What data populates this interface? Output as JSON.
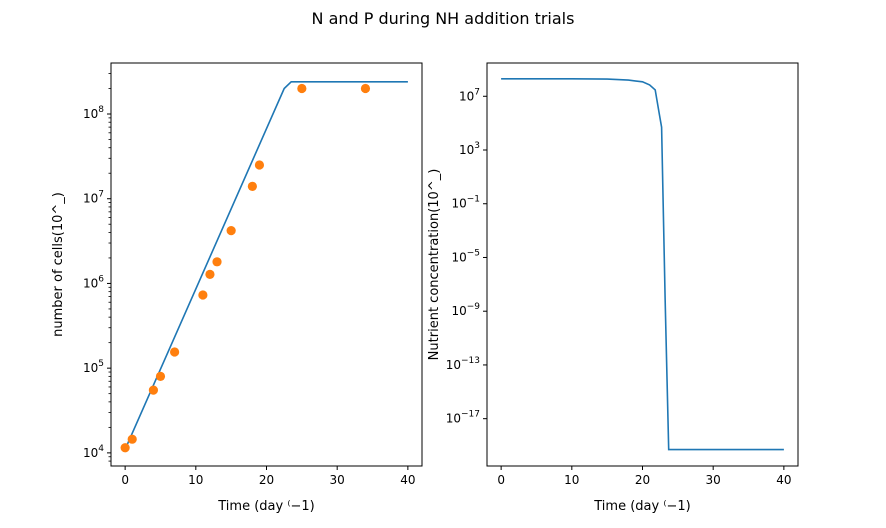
{
  "figure": {
    "title": "N and P during NH addition trials"
  },
  "chart_data": [
    {
      "type": "line",
      "title": "",
      "xlabel": "Time (day ⁽−1)",
      "ylabel": "number of cells(10^_)",
      "xlim": [
        -2,
        42
      ],
      "ylim": [
        7000,
        400000000
      ],
      "yscale": "log",
      "grid": false,
      "legend": "none",
      "x_ticks": [
        0,
        10,
        20,
        30,
        40
      ],
      "x_tick_labels": [
        "0",
        "10",
        "20",
        "30",
        "40"
      ],
      "y_ticks": [
        {
          "value": 10000,
          "base": "10",
          "exp": "4"
        },
        {
          "value": 100000,
          "base": "10",
          "exp": "5"
        },
        {
          "value": 1000000,
          "base": "10",
          "exp": "6"
        },
        {
          "value": 10000000,
          "base": "10",
          "exp": "7"
        },
        {
          "value": 100000000,
          "base": "10",
          "exp": "8"
        }
      ],
      "series": [
        {
          "kind": "line",
          "color": "#1f77b4",
          "x": [
            0,
            22.5,
            23.5,
            40
          ],
          "y": [
            11000,
            200000000,
            240000000,
            240000000
          ]
        },
        {
          "kind": "scatter",
          "color": "#ff7f0e",
          "x": [
            0,
            1,
            4,
            5,
            7,
            11,
            12,
            13,
            15,
            18,
            19,
            25,
            34
          ],
          "y": [
            11500,
            14500,
            55000,
            80000,
            155000,
            730000,
            1280000,
            1800000,
            4200000,
            14000000,
            25000000,
            200000000,
            200000000
          ]
        }
      ]
    },
    {
      "type": "line",
      "title": "",
      "xlabel": "Time (day ⁽−1)",
      "ylabel": "Nutrient concentration(10^_)",
      "xlim": [
        -2,
        42
      ],
      "ylim": [
        3e-21,
        3000000000.0
      ],
      "yscale": "log",
      "grid": false,
      "legend": "none",
      "x_ticks": [
        0,
        10,
        20,
        30,
        40
      ],
      "x_tick_labels": [
        "0",
        "10",
        "20",
        "30",
        "40"
      ],
      "y_ticks": [
        {
          "value": 10000000.0,
          "base": "10",
          "exp": "7"
        },
        {
          "value": 1000.0,
          "base": "10",
          "exp": "3"
        },
        {
          "value": 0.1,
          "base": "10",
          "exp": "−1"
        },
        {
          "value": 1e-05,
          "base": "10",
          "exp": "−5"
        },
        {
          "value": 1e-09,
          "base": "10",
          "exp": "−9"
        },
        {
          "value": 1e-13,
          "base": "10",
          "exp": "−13"
        },
        {
          "value": 1e-17,
          "base": "10",
          "exp": "−17"
        }
      ],
      "series": [
        {
          "kind": "line",
          "color": "#1f77b4",
          "x": [
            0,
            10,
            15,
            18,
            20,
            21,
            21.8,
            22.4,
            22.7,
            23.2,
            23.7,
            40
          ],
          "y": [
            200000000.0,
            200000000.0,
            190000000.0,
            160000000.0,
            120000000.0,
            70000000.0,
            30000000.0,
            400000.0,
            50000.0,
            1e-08,
            5e-20,
            5e-20
          ]
        }
      ]
    }
  ]
}
